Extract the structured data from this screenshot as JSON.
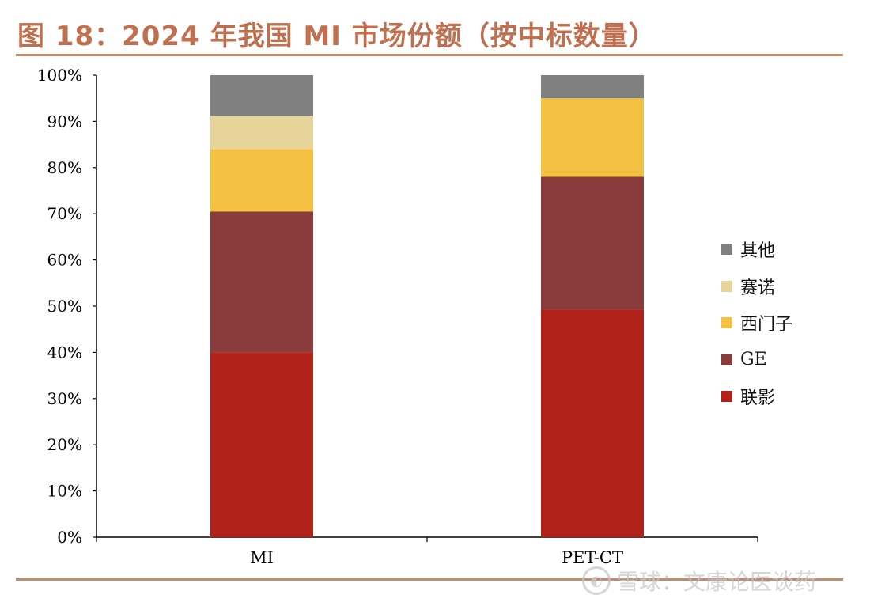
{
  "title": "图 18：2024 年我国 MI 市场份额（按中标数量）",
  "watermark": "雪球：文康论医谈药",
  "watermark_logo": "snowball-logo",
  "chart_data": {
    "type": "bar",
    "stacked": true,
    "categories": [
      "MI",
      "PET-CT"
    ],
    "series": [
      {
        "name": "联影",
        "color": "#b0221a",
        "values": [
          40.0,
          49.3
        ]
      },
      {
        "name": "GE",
        "color": "#8a3b3b",
        "values": [
          30.5,
          28.7
        ]
      },
      {
        "name": "西门子",
        "color": "#f5c143",
        "values": [
          13.5,
          17.0
        ]
      },
      {
        "name": "赛诺",
        "color": "#e6d49a",
        "values": [
          7.2,
          0.0
        ]
      },
      {
        "name": "其他",
        "color": "#808080",
        "values": [
          8.8,
          5.0
        ]
      }
    ],
    "ylim": [
      0,
      100
    ],
    "yticks": [
      "0%",
      "10%",
      "20%",
      "30%",
      "40%",
      "50%",
      "60%",
      "70%",
      "80%",
      "90%",
      "100%"
    ],
    "legend_position": "right",
    "legend_order": [
      "其他",
      "赛诺",
      "西门子",
      "GE",
      "联影"
    ],
    "grid": false
  }
}
